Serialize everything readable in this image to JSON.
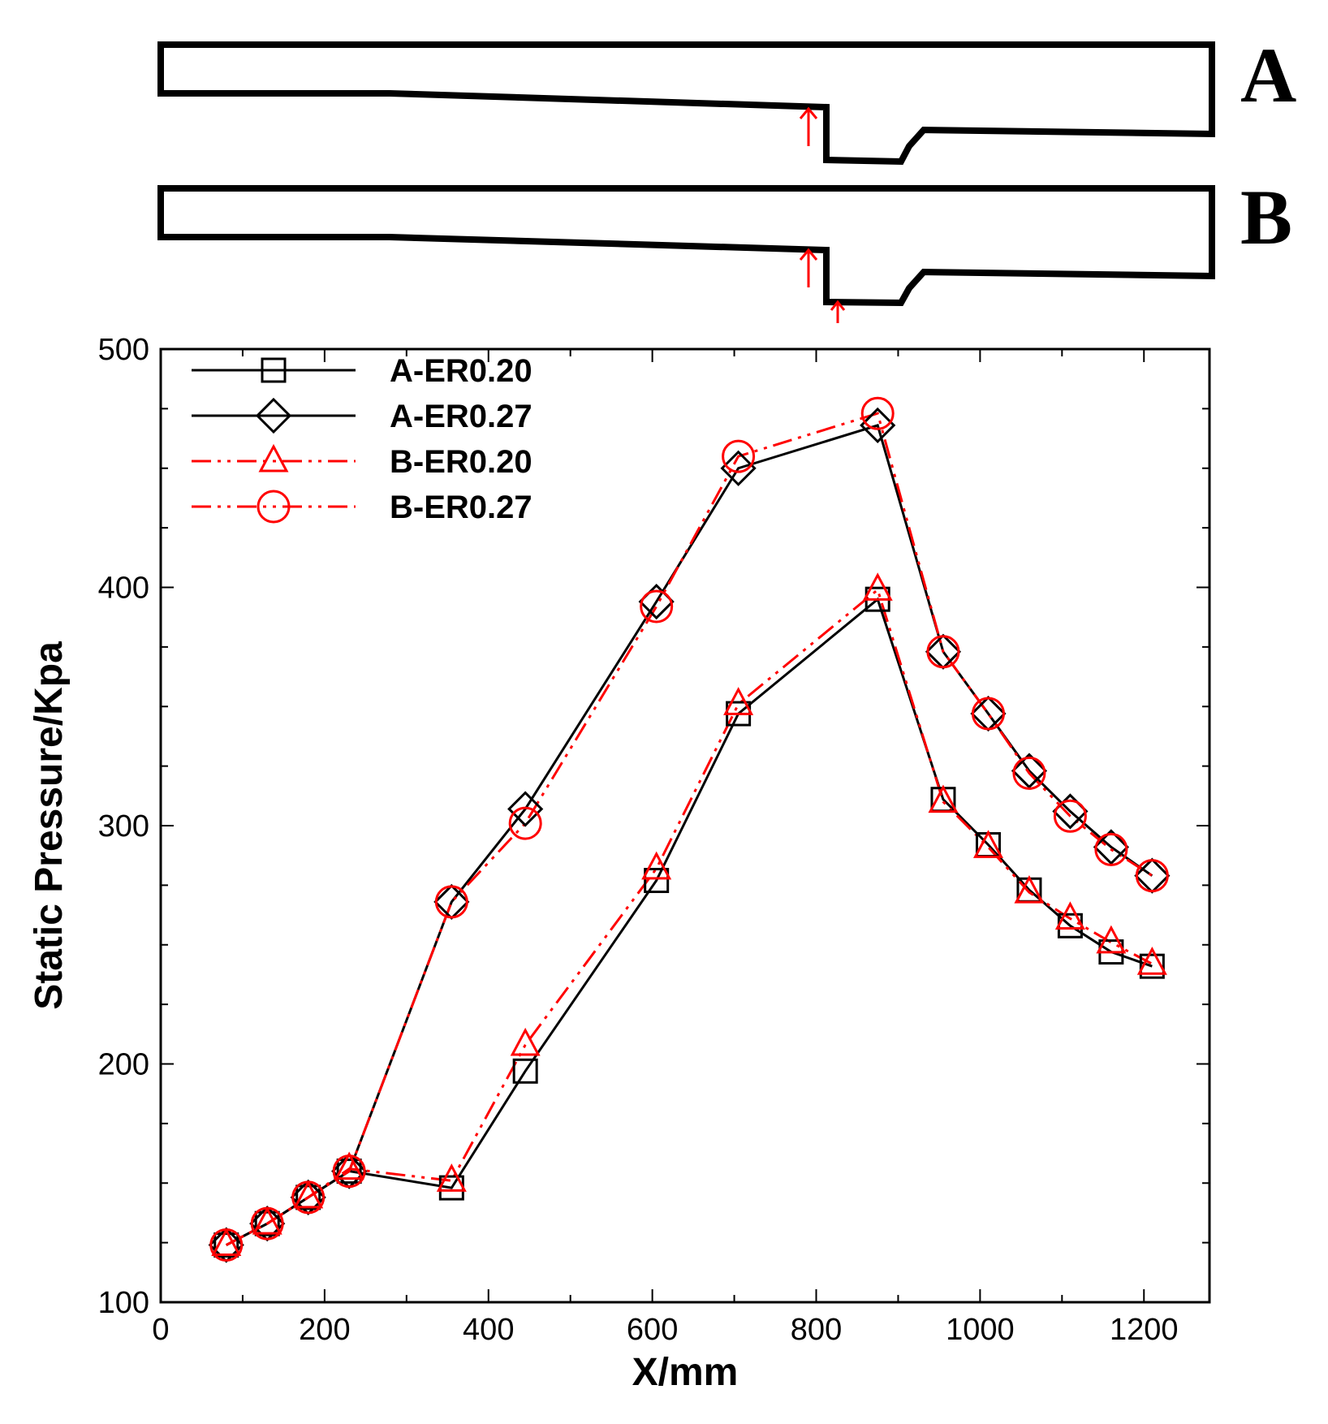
{
  "schematics": {
    "label_a": "A",
    "label_b": "B"
  },
  "colors": {
    "black": "#000000",
    "red": "#ff0000"
  },
  "chart_data": {
    "type": "line",
    "title": "",
    "xlabel": "X/mm",
    "ylabel": "Static Pressure/Kpa",
    "xlim": [
      0,
      1280
    ],
    "ylim": [
      100,
      500
    ],
    "xticks": [
      0,
      200,
      400,
      600,
      800,
      1000,
      1200
    ],
    "yticks": [
      100,
      200,
      300,
      400,
      500
    ],
    "legend_position": "top-left",
    "series": [
      {
        "name": "A-ER0.20",
        "color": "#000000",
        "marker": "square",
        "dash": "solid",
        "x": [
          80,
          130,
          180,
          230,
          355,
          445,
          605,
          705,
          875,
          955,
          1010,
          1060,
          1110,
          1160,
          1210
        ],
        "y": [
          124,
          133,
          144,
          155,
          148,
          197,
          277,
          347,
          395,
          311,
          292,
          273,
          258,
          247,
          241
        ]
      },
      {
        "name": "A-ER0.27",
        "color": "#000000",
        "marker": "diamond",
        "dash": "solid",
        "x": [
          80,
          130,
          180,
          230,
          355,
          445,
          605,
          705,
          875,
          955,
          1010,
          1060,
          1110,
          1160,
          1210
        ],
        "y": [
          124,
          133,
          144,
          155,
          268,
          307,
          394,
          450,
          468,
          373,
          347,
          323,
          306,
          291,
          279
        ]
      },
      {
        "name": "B-ER0.20",
        "color": "#ff0000",
        "marker": "triangle",
        "dash": "dashdotdot",
        "x": [
          80,
          130,
          180,
          230,
          355,
          445,
          605,
          705,
          875,
          955,
          1010,
          1060,
          1110,
          1160,
          1210
        ],
        "y": [
          124,
          133,
          144,
          156,
          151,
          208,
          282,
          351,
          399,
          310,
          291,
          272,
          261,
          251,
          242
        ]
      },
      {
        "name": "B-ER0.27",
        "color": "#ff0000",
        "marker": "circle",
        "dash": "dashdotdot",
        "x": [
          80,
          130,
          180,
          230,
          355,
          445,
          605,
          705,
          875,
          955,
          1010,
          1060,
          1110,
          1160,
          1210
        ],
        "y": [
          124,
          133,
          144,
          155,
          268,
          301,
          392,
          455,
          473,
          373,
          347,
          322,
          304,
          290,
          279
        ]
      }
    ]
  }
}
